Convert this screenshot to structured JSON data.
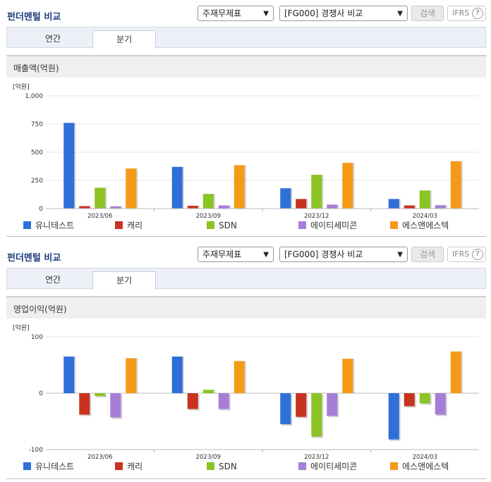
{
  "panels": [
    {
      "title": "펀더멘털 비교",
      "select_statement": "주재무제표",
      "select_compare": "[FG000] 경쟁사 비교",
      "search_label": "검색",
      "ifrs_label": "IFRS",
      "help_label": "?",
      "tabs": [
        {
          "label": "연간",
          "active": false
        },
        {
          "label": "분기",
          "active": true
        }
      ],
      "metric_title": "매출액(억원)"
    },
    {
      "title": "펀더멘털 비교",
      "select_statement": "주재무제표",
      "select_compare": "[FG000] 경쟁사 비교",
      "search_label": "검색",
      "ifrs_label": "IFRS",
      "help_label": "?",
      "tabs": [
        {
          "label": "연간",
          "active": false
        },
        {
          "label": "분기",
          "active": true
        }
      ],
      "metric_title": "영업이익(억원)"
    }
  ],
  "chart_data": [
    {
      "type": "bar",
      "ylabel": "[억원]",
      "ylim": [
        0,
        1000
      ],
      "yticks": [
        0,
        250,
        500,
        750,
        1000
      ],
      "ytick_labels": [
        "0",
        "250",
        "500",
        "750",
        "1,000"
      ],
      "categories": [
        "2023/06",
        "2023/09",
        "2023/12",
        "2024/03"
      ],
      "series": [
        {
          "name": "유니테스트",
          "color": "#2f6fd9",
          "values": [
            760,
            370,
            180,
            85
          ]
        },
        {
          "name": "캐리",
          "color": "#c8321f",
          "values": [
            22,
            25,
            85,
            28
          ]
        },
        {
          "name": "SDN",
          "color": "#8cc325",
          "values": [
            185,
            130,
            300,
            160
          ]
        },
        {
          "name": "에이티세미콘",
          "color": "#a67ed8",
          "values": [
            20,
            28,
            35,
            30
          ]
        },
        {
          "name": "에스앤에스텍",
          "color": "#f59a17",
          "values": [
            355,
            385,
            405,
            420
          ]
        }
      ],
      "grid": true,
      "legend": "bottom"
    },
    {
      "type": "bar",
      "ylabel": "[억원]",
      "ylim": [
        -100,
        100
      ],
      "yticks": [
        -100,
        0,
        100
      ],
      "ytick_labels": [
        "-100",
        "0",
        "100"
      ],
      "categories": [
        "2023/06",
        "2023/09",
        "2023/12",
        "2024/03"
      ],
      "series": [
        {
          "name": "유니테스트",
          "color": "#2f6fd9",
          "values": [
            65,
            65,
            -55,
            -82
          ]
        },
        {
          "name": "캐리",
          "color": "#c8321f",
          "values": [
            -38,
            -28,
            -42,
            -23
          ]
        },
        {
          "name": "SDN",
          "color": "#8cc325",
          "values": [
            -5,
            6,
            -77,
            -18
          ]
        },
        {
          "name": "에이티세미콘",
          "color": "#a67ed8",
          "values": [
            -43,
            -28,
            -40,
            -38
          ]
        },
        {
          "name": "에스앤에스텍",
          "color": "#f59a17",
          "values": [
            62,
            57,
            61,
            74
          ]
        }
      ],
      "grid": true,
      "legend": "bottom"
    }
  ]
}
